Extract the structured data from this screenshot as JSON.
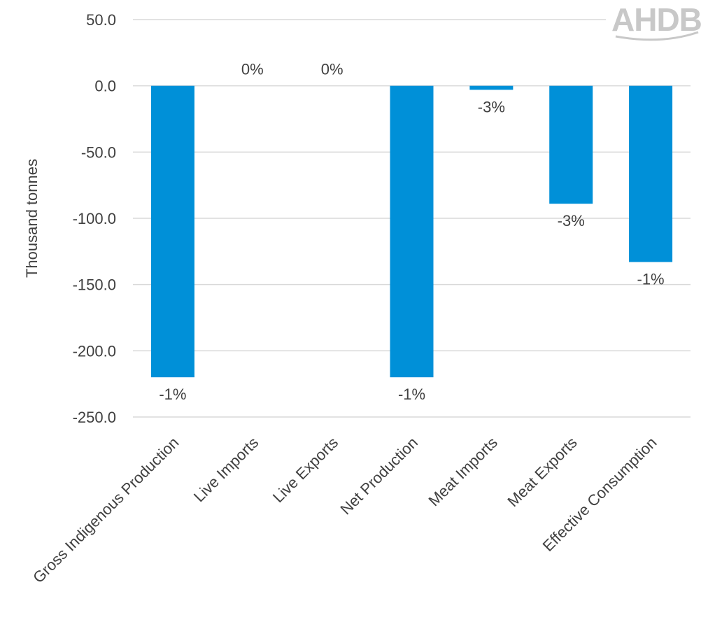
{
  "brand": {
    "logo_text": "AHDB"
  },
  "chart_data": {
    "type": "bar",
    "categories": [
      "Gross Indigenous Production",
      "Live Imports",
      "Live Exports",
      "Net Production",
      "Meat Imports",
      "Meat Exports",
      "Effective Consumption"
    ],
    "values": [
      -220,
      0,
      0,
      -220,
      -3,
      -89,
      -133
    ],
    "data_labels": [
      "-1%",
      "0%",
      "0%",
      "-1%",
      "-3%",
      "-3%",
      "-1%"
    ],
    "ylabel": "Thousand tonnes",
    "xlabel": "",
    "ylim": [
      -250,
      50
    ],
    "yticks": [
      50,
      0,
      -50,
      -100,
      -150,
      -200,
      -250
    ],
    "ytick_labels": [
      "50.0",
      "0.0",
      "-50.0",
      "-100.0",
      "-150.0",
      "-200.0",
      "-250.0"
    ],
    "grid": true,
    "bar_color": "#0090d8"
  }
}
